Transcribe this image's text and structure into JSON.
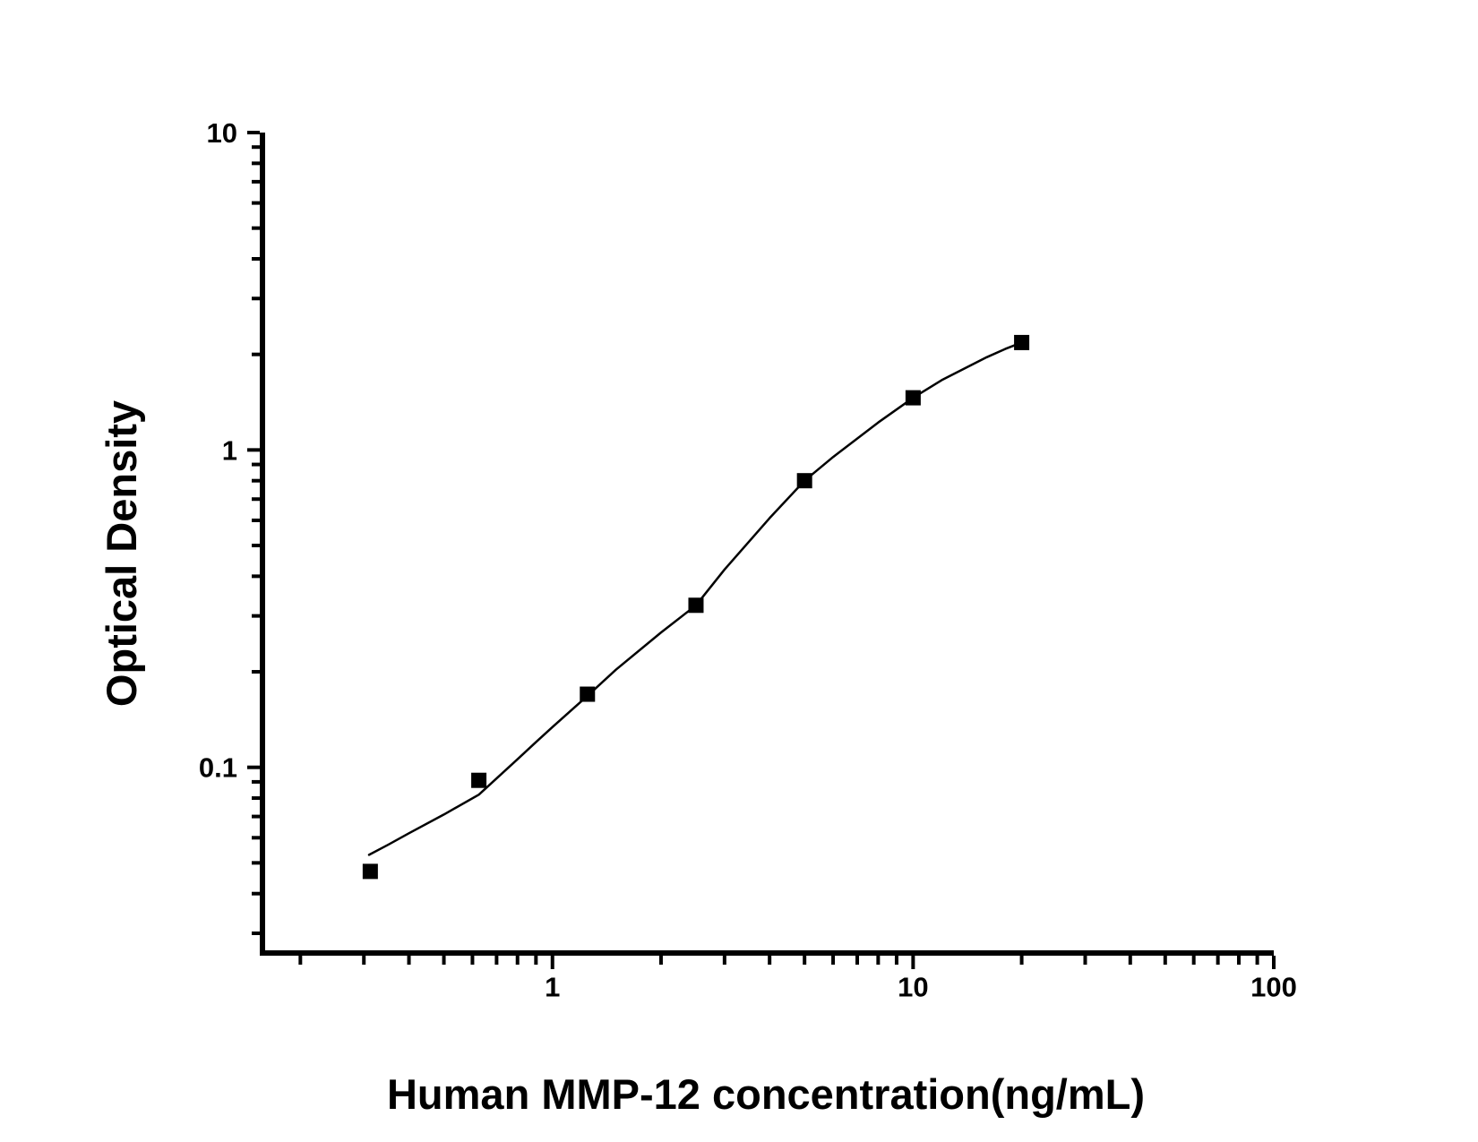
{
  "figure": {
    "background_color": "#ffffff",
    "ink_color": "#000000"
  },
  "chart_data": {
    "type": "scatter",
    "description": "ELISA standard curve, log-log axes, black square markers with fitted sigmoid line",
    "title": "",
    "xlabel": "Human MMP-12 concentration(ng/mL)",
    "ylabel": "Optical Density",
    "x_scale": "log10",
    "y_scale": "log10",
    "xlim": [
      0.157,
      100
    ],
    "ylim": [
      0.026,
      10
    ],
    "grid": false,
    "legend": null,
    "x_ticks": {
      "major": [
        1,
        10,
        100
      ],
      "labels": [
        "1",
        "10",
        "100"
      ],
      "minor": [
        0.2,
        0.3,
        0.4,
        0.5,
        0.6,
        0.7,
        0.8,
        0.9,
        2,
        3,
        4,
        5,
        6,
        7,
        8,
        9,
        20,
        30,
        40,
        50,
        60,
        70,
        80,
        90
      ]
    },
    "y_ticks": {
      "major": [
        0.1,
        1,
        10
      ],
      "labels": [
        "0.1",
        "1",
        "10"
      ],
      "minor": [
        0.03,
        0.04,
        0.05,
        0.06,
        0.07,
        0.08,
        0.09,
        0.2,
        0.3,
        0.4,
        0.5,
        0.6,
        0.7,
        0.8,
        0.9,
        2,
        3,
        4,
        5,
        6,
        7,
        8,
        9
      ]
    },
    "series": [
      {
        "name": "standards",
        "marker": "filled-square",
        "marker_size_px": 17,
        "color": "#000000",
        "points": [
          {
            "x": 0.3125,
            "y": 0.047
          },
          {
            "x": 0.625,
            "y": 0.091
          },
          {
            "x": 1.25,
            "y": 0.17
          },
          {
            "x": 2.5,
            "y": 0.324
          },
          {
            "x": 5,
            "y": 0.8
          },
          {
            "x": 10,
            "y": 1.46
          },
          {
            "x": 20,
            "y": 2.18
          }
        ]
      }
    ],
    "fit_curve": {
      "name": "fit-line",
      "color": "#000000",
      "samples": [
        [
          0.31,
          0.053
        ],
        [
          0.35,
          0.057
        ],
        [
          0.4,
          0.062
        ],
        [
          0.5,
          0.071
        ],
        [
          0.625,
          0.082
        ],
        [
          0.8,
          0.106
        ],
        [
          0.9,
          0.12
        ],
        [
          1.0,
          0.134
        ],
        [
          1.25,
          0.168
        ],
        [
          1.5,
          0.203
        ],
        [
          2.0,
          0.266
        ],
        [
          2.5,
          0.324
        ],
        [
          3.0,
          0.42
        ],
        [
          4.0,
          0.61
        ],
        [
          5.0,
          0.8
        ],
        [
          6.0,
          0.95
        ],
        [
          8.0,
          1.22
        ],
        [
          10,
          1.46
        ],
        [
          12,
          1.66
        ],
        [
          16,
          1.96
        ],
        [
          18,
          2.08
        ],
        [
          20,
          2.18
        ]
      ]
    }
  }
}
